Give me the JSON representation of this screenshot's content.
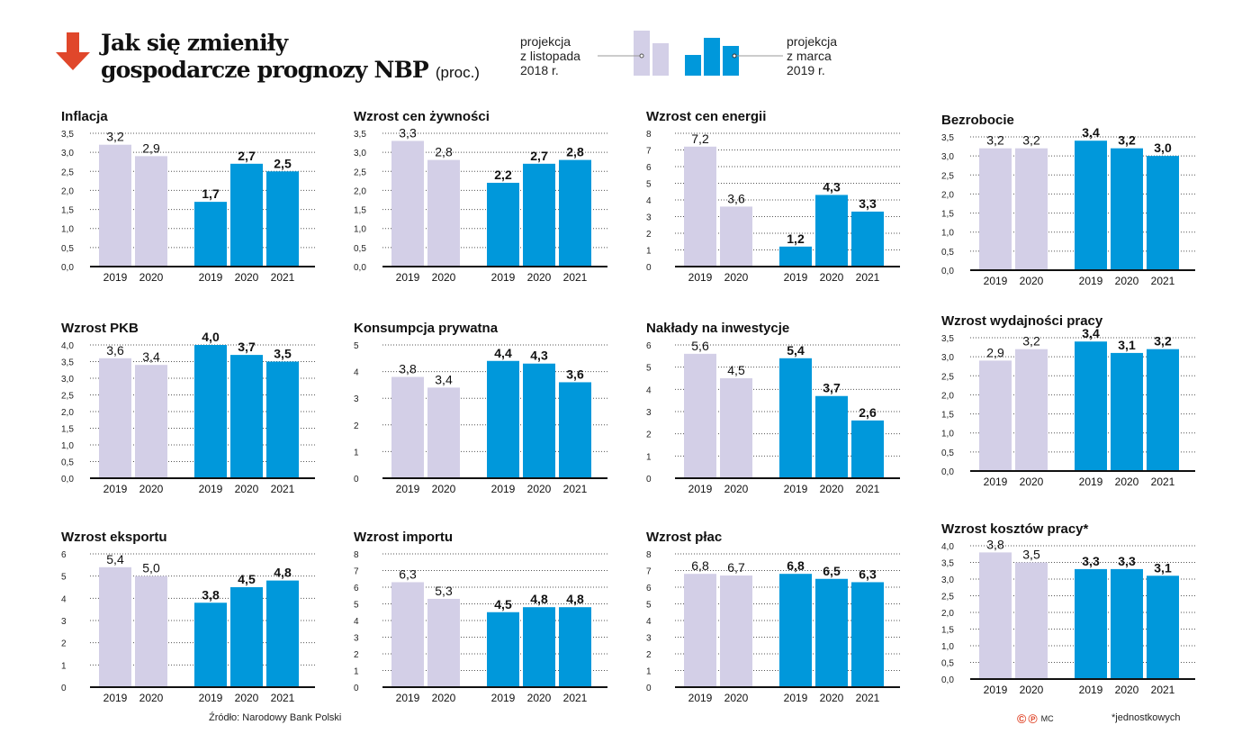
{
  "header": {
    "title_line1": "Jak się zmieniły",
    "title_line2": "gospodarcze prognozy NBP",
    "unit": "(proc.)"
  },
  "legend": {
    "old": [
      "projekcja",
      "z listopada",
      "2018 r."
    ],
    "new": [
      "projekcja",
      "z marca",
      "2019 r."
    ]
  },
  "colors": {
    "old": "#d3cfe7",
    "new": "#0098db",
    "arrow": "#e0472b"
  },
  "footer": {
    "source": "Źródło: Narodowy Bank Polski",
    "credit": "MC",
    "footnote": "*jednostkowych"
  },
  "chart_data": [
    {
      "type": "bar",
      "title": "Inflacja",
      "ticks": [
        0,
        0.5,
        1,
        1.5,
        2,
        2.5,
        3,
        3.5
      ],
      "decimals": 1,
      "old": {
        "years": [
          "2019",
          "2020"
        ],
        "values": [
          3.2,
          2.9
        ]
      },
      "new": {
        "years": [
          "2019",
          "2020",
          "2021"
        ],
        "values": [
          1.7,
          2.7,
          2.5
        ]
      }
    },
    {
      "type": "bar",
      "title": "Wzrost cen żywności",
      "ticks": [
        0,
        0.5,
        1,
        1.5,
        2,
        2.5,
        3,
        3.5
      ],
      "decimals": 1,
      "old": {
        "years": [
          "2019",
          "2020"
        ],
        "values": [
          3.3,
          2.8
        ]
      },
      "new": {
        "years": [
          "2019",
          "2020",
          "2021"
        ],
        "values": [
          2.2,
          2.7,
          2.8
        ]
      }
    },
    {
      "type": "bar",
      "title": "Wzrost cen energii",
      "ticks": [
        0,
        1,
        2,
        3,
        4,
        5,
        6,
        7,
        8
      ],
      "decimals": 0,
      "old": {
        "years": [
          "2019",
          "2020"
        ],
        "values": [
          7.2,
          3.6
        ]
      },
      "new": {
        "years": [
          "2019",
          "2020",
          "2021"
        ],
        "values": [
          1.2,
          4.3,
          3.3
        ]
      }
    },
    {
      "type": "bar",
      "title": "Bezrobocie",
      "ticks": [
        0,
        0.5,
        1,
        1.5,
        2,
        2.5,
        3,
        3.5
      ],
      "decimals": 1,
      "old": {
        "years": [
          "2019",
          "2020"
        ],
        "values": [
          3.2,
          3.2
        ]
      },
      "new": {
        "years": [
          "2019",
          "2020",
          "2021"
        ],
        "values": [
          3.4,
          3.2,
          3.0
        ]
      }
    },
    {
      "type": "bar",
      "title": "Wzrost PKB",
      "ticks": [
        0,
        0.5,
        1,
        1.5,
        2,
        2.5,
        3,
        3.5,
        4
      ],
      "decimals": 1,
      "old": {
        "years": [
          "2019",
          "2020"
        ],
        "values": [
          3.6,
          3.4
        ]
      },
      "new": {
        "years": [
          "2019",
          "2020",
          "2021"
        ],
        "values": [
          4.0,
          3.7,
          3.5
        ]
      }
    },
    {
      "type": "bar",
      "title": "Konsumpcja prywatna",
      "ticks": [
        0,
        1,
        2,
        3,
        4,
        5
      ],
      "decimals": 0,
      "old": {
        "years": [
          "2019",
          "2020"
        ],
        "values": [
          3.8,
          3.4
        ]
      },
      "new": {
        "years": [
          "2019",
          "2020",
          "2021"
        ],
        "values": [
          4.4,
          4.3,
          3.6
        ]
      }
    },
    {
      "type": "bar",
      "title": "Nakłady na inwestycje",
      "ticks": [
        0,
        1,
        2,
        3,
        4,
        5,
        6
      ],
      "decimals": 0,
      "old": {
        "years": [
          "2019",
          "2020"
        ],
        "values": [
          5.6,
          4.5
        ]
      },
      "new": {
        "years": [
          "2019",
          "2020",
          "2021"
        ],
        "values": [
          5.4,
          3.7,
          2.6
        ]
      }
    },
    {
      "type": "bar",
      "title": "Wzrost wydajności pracy",
      "ticks": [
        0,
        0.5,
        1,
        1.5,
        2,
        2.5,
        3,
        3.5
      ],
      "decimals": 1,
      "old": {
        "years": [
          "2019",
          "2020"
        ],
        "values": [
          2.9,
          3.2
        ]
      },
      "new": {
        "years": [
          "2019",
          "2020",
          "2021"
        ],
        "values": [
          3.4,
          3.1,
          3.2
        ]
      }
    },
    {
      "type": "bar",
      "title": "Wzrost eksportu",
      "ticks": [
        0,
        1,
        2,
        3,
        4,
        5,
        6
      ],
      "decimals": 0,
      "old": {
        "years": [
          "2019",
          "2020"
        ],
        "values": [
          5.4,
          5.0
        ]
      },
      "new": {
        "years": [
          "2019",
          "2020",
          "2021"
        ],
        "values": [
          3.8,
          4.5,
          4.8
        ]
      }
    },
    {
      "type": "bar",
      "title": "Wzrost importu",
      "ticks": [
        0,
        1,
        2,
        3,
        4,
        5,
        6,
        7,
        8
      ],
      "decimals": 0,
      "old": {
        "years": [
          "2019",
          "2020"
        ],
        "values": [
          6.3,
          5.3
        ]
      },
      "new": {
        "years": [
          "2019",
          "2020",
          "2021"
        ],
        "values": [
          4.5,
          4.8,
          4.8
        ]
      }
    },
    {
      "type": "bar",
      "title": "Wzrost płac",
      "ticks": [
        0,
        1,
        2,
        3,
        4,
        5,
        6,
        7,
        8
      ],
      "decimals": 0,
      "old": {
        "years": [
          "2019",
          "2020"
        ],
        "values": [
          6.8,
          6.7
        ]
      },
      "new": {
        "years": [
          "2019",
          "2020",
          "2021"
        ],
        "values": [
          6.8,
          6.5,
          6.3
        ]
      }
    },
    {
      "type": "bar",
      "title": "Wzrost kosztów pracy*",
      "ticks": [
        0,
        0.5,
        1,
        1.5,
        2,
        2.5,
        3,
        3.5,
        4
      ],
      "decimals": 1,
      "old": {
        "years": [
          "2019",
          "2020"
        ],
        "values": [
          3.8,
          3.5
        ]
      },
      "new": {
        "years": [
          "2019",
          "2020",
          "2021"
        ],
        "values": [
          3.3,
          3.3,
          3.1
        ]
      }
    }
  ]
}
